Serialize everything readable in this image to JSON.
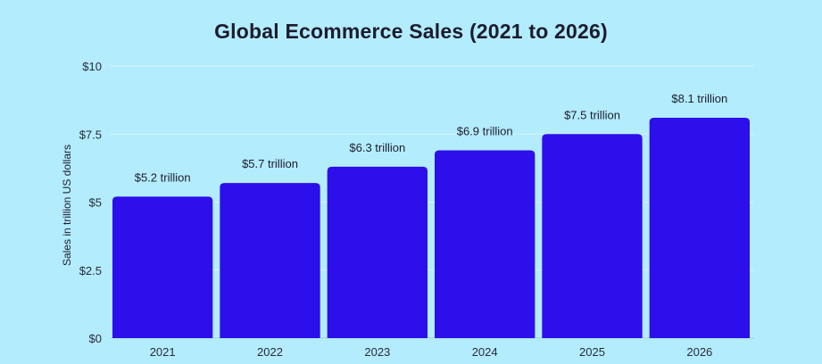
{
  "chart_data": {
    "type": "bar",
    "title": "Global Ecommerce Sales (2021 to 2026)",
    "ylabel": "Sales in trillion US dollars",
    "xlabel": "",
    "categories": [
      "2021",
      "2022",
      "2023",
      "2024",
      "2025",
      "2026"
    ],
    "values": [
      5.2,
      5.7,
      6.3,
      6.9,
      7.5,
      8.1
    ],
    "data_labels": [
      "$5.2 trillion",
      "$5.7 trillion",
      "$6.3 trillion",
      "$6.9 trillion",
      "$7.5 trillion",
      "$8.1 trillion"
    ],
    "yticks": [
      0,
      2.5,
      5,
      7.5,
      10
    ],
    "ytick_labels": [
      "$0",
      "$2.5",
      "$5",
      "$7.5",
      "$10"
    ],
    "ylim": [
      0,
      10
    ],
    "grid": true,
    "legend": "none",
    "colors": {
      "bar": "#2c0fea",
      "background": "#b3ecfc",
      "grid": "#d8f3fb",
      "text": "#1c1c2e"
    }
  }
}
